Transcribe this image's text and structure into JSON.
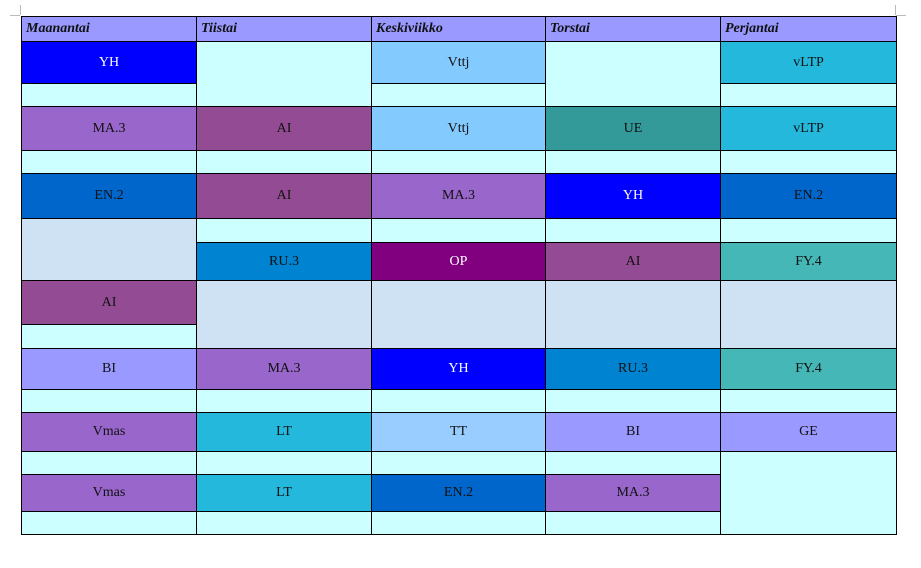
{
  "timetable": {
    "columns": [
      {
        "header": "Maanantai",
        "cells": [
          {
            "label": "YH",
            "color": "#0000ff",
            "text_color": "#ffffff"
          },
          {
            "color": "#ccffff"
          },
          {
            "label": "MA.3",
            "color": "#9966cc"
          },
          {
            "color": "#ccffff"
          },
          {
            "label": "EN.2",
            "color": "#0066cc"
          },
          {
            "color": "#cfe2f3"
          },
          {
            "label": "AI",
            "color": "#934c93"
          },
          {
            "color": "#ccffff"
          },
          {
            "label": "BI",
            "color": "#9999ff"
          },
          {
            "color": "#ccffff"
          },
          {
            "label": "Vmas",
            "color": "#9966cc"
          },
          {
            "color": "#ccffff"
          },
          {
            "label": "Vmas",
            "color": "#9966cc"
          },
          {
            "color": "#ccffff"
          }
        ]
      },
      {
        "header": "Tiistai",
        "cells": [
          {
            "color": "#ccffff"
          },
          {
            "label": "AI",
            "color": "#934c93"
          },
          {
            "color": "#ccffff"
          },
          {
            "label": "AI",
            "color": "#934c93"
          },
          {
            "color": "#ccffff"
          },
          {
            "label": "RU.3",
            "color": "#0084d1"
          },
          {
            "color": "#cfe2f3"
          },
          {
            "label": "MA.3",
            "color": "#9966cc"
          },
          {
            "color": "#ccffff"
          },
          {
            "label": "LT",
            "color": "#23b8dc"
          },
          {
            "color": "#ccffff"
          },
          {
            "label": "LT",
            "color": "#23b8dc"
          },
          {
            "color": "#ccffff"
          }
        ]
      },
      {
        "header": "Keskiviikko",
        "cells": [
          {
            "label": "Vttj",
            "color": "#83caff"
          },
          {
            "color": "#ccffff"
          },
          {
            "label": "Vttj",
            "color": "#83caff"
          },
          {
            "color": "#ccffff"
          },
          {
            "label": "MA.3",
            "color": "#9966cc"
          },
          {
            "color": "#ccffff"
          },
          {
            "label": "OP",
            "color": "#800080",
            "text_color": "#ffffff"
          },
          {
            "color": "#cfe2f3"
          },
          {
            "label": "YH",
            "color": "#0000ff",
            "text_color": "#ffffff"
          },
          {
            "color": "#ccffff"
          },
          {
            "label": "TT",
            "color": "#99ccff"
          },
          {
            "color": "#ccffff"
          },
          {
            "label": "EN.2",
            "color": "#0066cc"
          },
          {
            "color": "#ccffff"
          }
        ]
      },
      {
        "header": "Torstai",
        "cells": [
          {
            "color": "#ccffff"
          },
          {
            "label": "UE",
            "color": "#339999"
          },
          {
            "color": "#ccffff"
          },
          {
            "label": "YH",
            "color": "#0000ff",
            "text_color": "#ffffff"
          },
          {
            "color": "#ccffff"
          },
          {
            "label": "AI",
            "color": "#934c93"
          },
          {
            "color": "#cfe2f3"
          },
          {
            "label": "RU.3",
            "color": "#0084d1"
          },
          {
            "color": "#ccffff"
          },
          {
            "label": "BI",
            "color": "#9999ff"
          },
          {
            "color": "#ccffff"
          },
          {
            "label": "MA.3",
            "color": "#9966cc"
          },
          {
            "color": "#ccffff"
          }
        ]
      },
      {
        "header": "Perjantai",
        "cells": [
          {
            "label": "vLTP",
            "color": "#23b8dc"
          },
          {
            "color": "#ccffff"
          },
          {
            "label": "vLTP",
            "color": "#23b8dc"
          },
          {
            "color": "#ccffff"
          },
          {
            "label": "EN.2",
            "color": "#0066cc"
          },
          {
            "color": "#ccffff"
          },
          {
            "label": "FY.4",
            "color": "#45b7b7"
          },
          {
            "color": "#cfe2f3"
          },
          {
            "label": "FY.4",
            "color": "#45b7b7"
          },
          {
            "color": "#ccffff"
          },
          {
            "label": "GE",
            "color": "#9999ff"
          },
          {
            "color": "#ccffff"
          }
        ]
      }
    ],
    "header_color": "#9999ff"
  }
}
